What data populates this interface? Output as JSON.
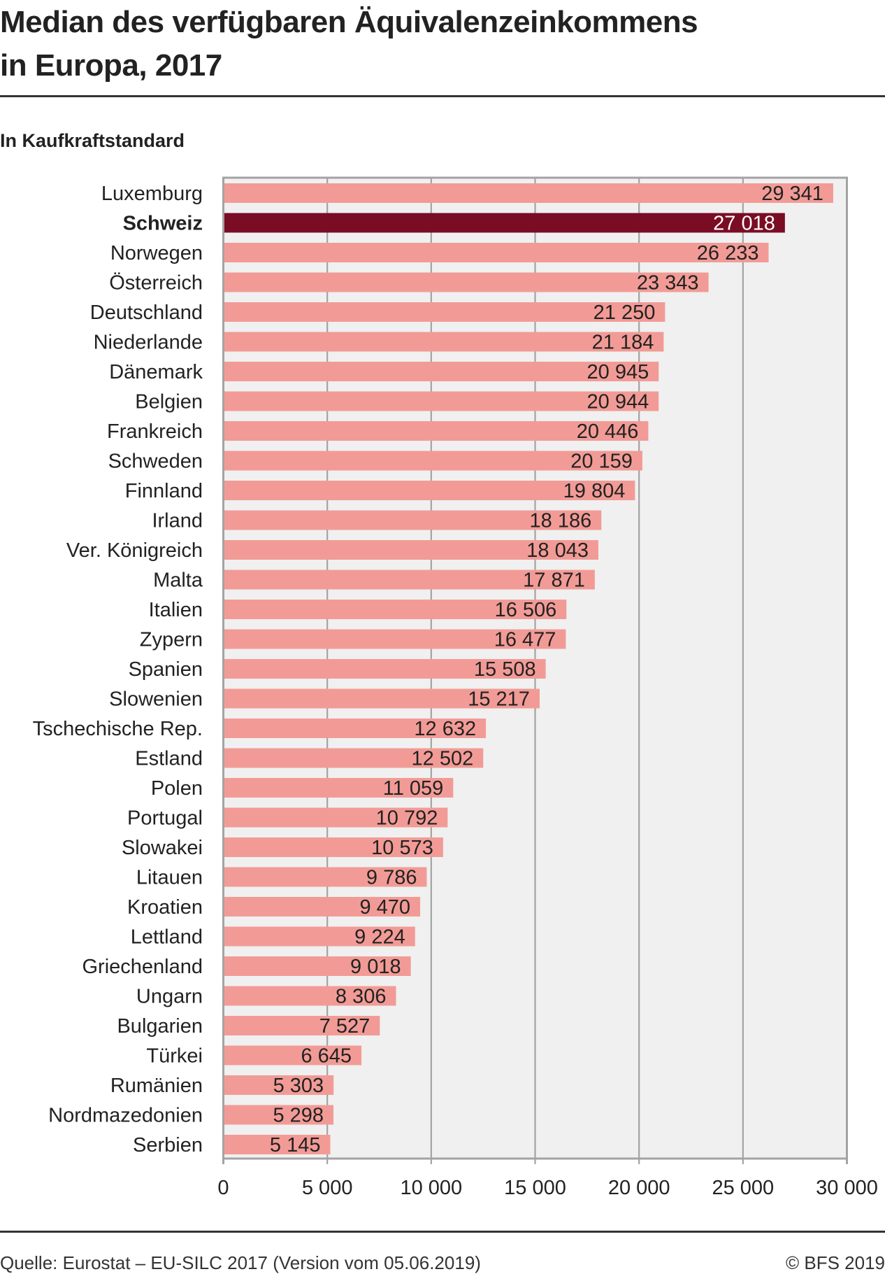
{
  "header": {
    "title_line1": "Median des verfügbaren Äquivalenzeinkommens",
    "title_line2": "in Europa, 2017",
    "subtitle": "In Kaufkraftstandard"
  },
  "footer": {
    "source": "Quelle: Eurostat – EU-SILC 2017 (Version vom 05.06.2019)",
    "copyright": "© BFS 2019"
  },
  "colors": {
    "bar": "#F29B96",
    "highlight": "#7A0C23",
    "plot_background": "#F0F0F0",
    "grid": "#A3A3A3"
  },
  "chart_data": {
    "type": "bar",
    "orientation": "horizontal",
    "title": "Median des verfügbaren Äquivalenzeinkommens in Europa, 2017",
    "subtitle": "In Kaufkraftstandard",
    "xlabel": "",
    "ylabel": "",
    "xlim": [
      0,
      30000
    ],
    "xticks": [
      0,
      5000,
      10000,
      15000,
      20000,
      25000,
      30000
    ],
    "xtick_labels": [
      "0",
      "5 000",
      "10 000",
      "15 000",
      "20 000",
      "25 000",
      "30 000"
    ],
    "grid": "vertical",
    "highlight": "Schweiz",
    "categories": [
      "Luxemburg",
      "Schweiz",
      "Norwegen",
      "Österreich",
      "Deutschland",
      "Niederlande",
      "Dänemark",
      "Belgien",
      "Frankreich",
      "Schweden",
      "Finnland",
      "Irland",
      "Ver. Königreich",
      "Malta",
      "Italien",
      "Zypern",
      "Spanien",
      "Slowenien",
      "Tschechische Rep.",
      "Estland",
      "Polen",
      "Portugal",
      "Slowakei",
      "Litauen",
      "Kroatien",
      "Lettland",
      "Griechenland",
      "Ungarn",
      "Bulgarien",
      "Türkei",
      "Rumänien",
      "Nordmazedonien",
      "Serbien"
    ],
    "values": [
      29341,
      27018,
      26233,
      23343,
      21250,
      21184,
      20945,
      20944,
      20446,
      20159,
      19804,
      18186,
      18043,
      17871,
      16506,
      16477,
      15508,
      15217,
      12632,
      12502,
      11059,
      10792,
      10573,
      9786,
      9470,
      9224,
      9018,
      8306,
      7527,
      6645,
      5303,
      5298,
      5145
    ],
    "value_labels": [
      "29 341",
      "27 018",
      "26 233",
      "23 343",
      "21 250",
      "21 184",
      "20 945",
      "20 944",
      "20 446",
      "20 159",
      "19 804",
      "18 186",
      "18 043",
      "17 871",
      "16 506",
      "16 477",
      "15 508",
      "15 217",
      "12 632",
      "12 502",
      "11 059",
      "10 792",
      "10 573",
      "9 786",
      "9 470",
      "9 224",
      "9 018",
      "8 306",
      "7 527",
      "6 645",
      "5 303",
      "5 298",
      "5 145"
    ],
    "source": "Quelle: Eurostat – EU-SILC 2017 (Version vom 05.06.2019)"
  }
}
